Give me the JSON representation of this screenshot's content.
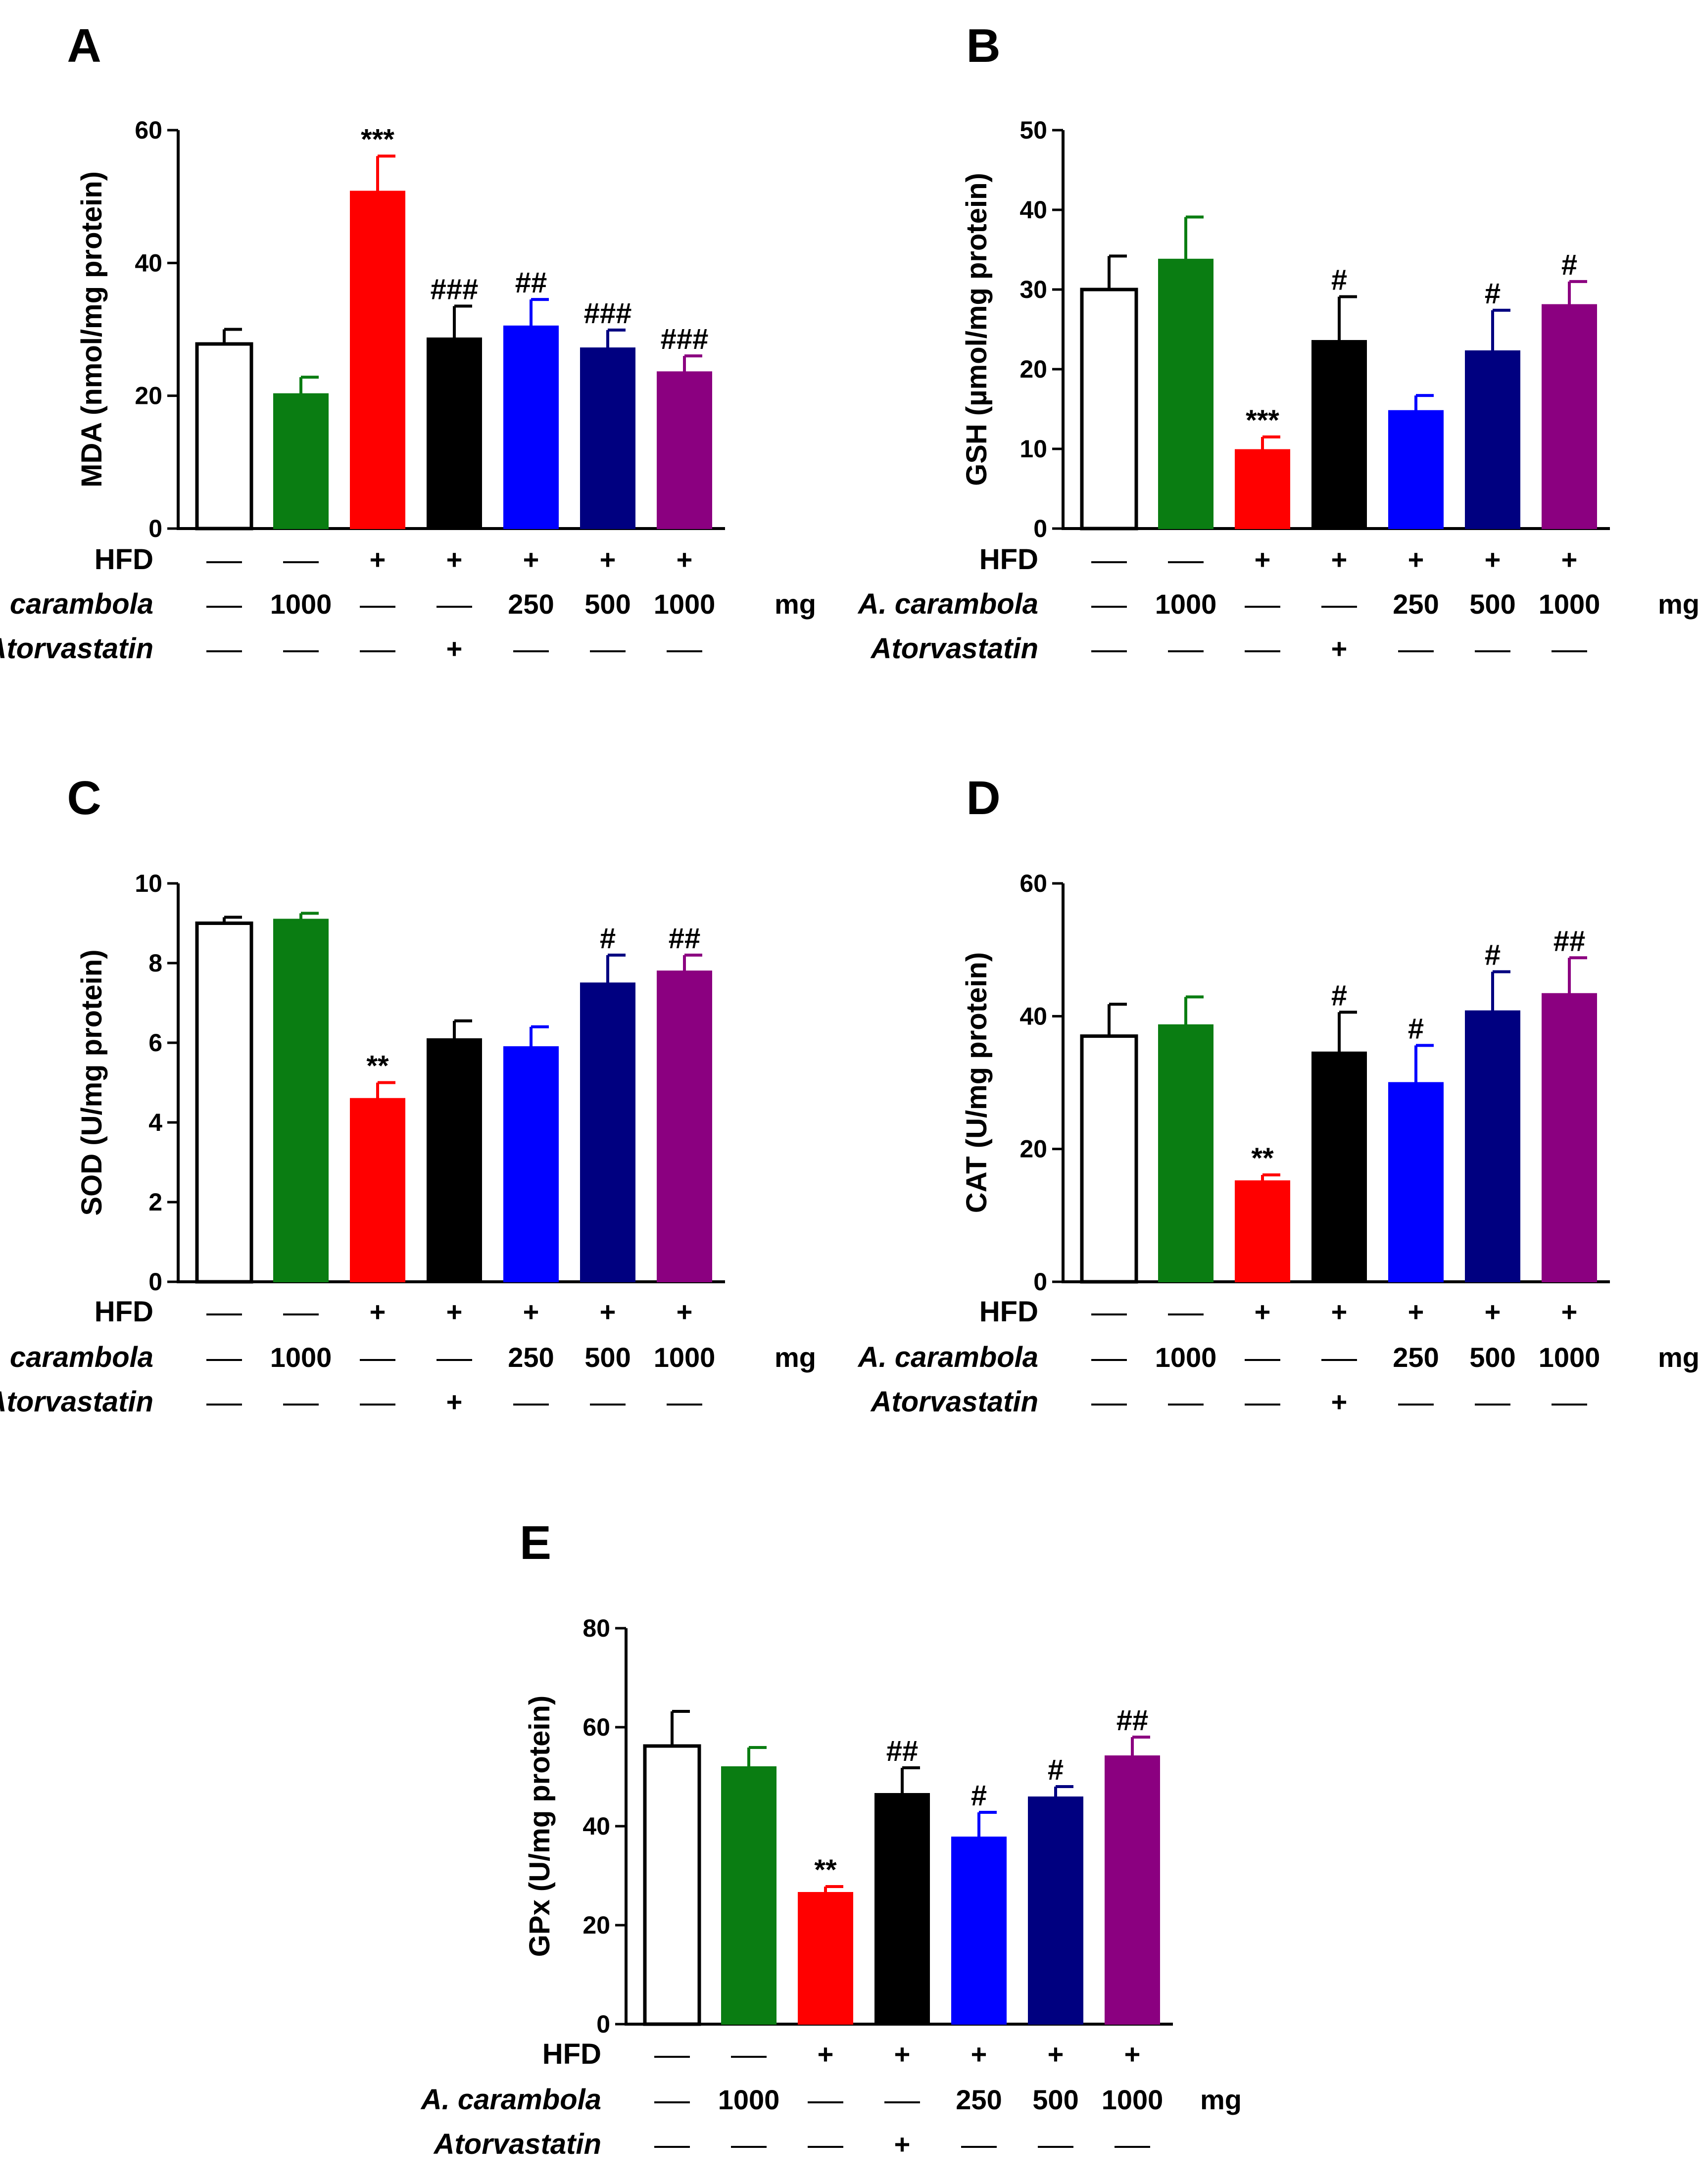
{
  "figure": {
    "row_labels": {
      "hfd": "HFD",
      "carambola": "A. carambola",
      "atorvastatin": "Atorvastatin"
    },
    "unit": "mg",
    "groups": [
      {
        "hfd": "—",
        "carambola": "—",
        "atorvastatin": "—"
      },
      {
        "hfd": "—",
        "carambola": "1000",
        "atorvastatin": "—"
      },
      {
        "hfd": "+",
        "carambola": "—",
        "atorvastatin": "—"
      },
      {
        "hfd": "+",
        "carambola": "—",
        "atorvastatin": "+"
      },
      {
        "hfd": "+",
        "carambola": "250",
        "atorvastatin": "—"
      },
      {
        "hfd": "+",
        "carambola": "500",
        "atorvastatin": "—"
      },
      {
        "hfd": "+",
        "carambola": "1000",
        "atorvastatin": "—"
      }
    ],
    "bar_colors": [
      "#ffffff",
      "#0a7d12",
      "#ff0000",
      "#000000",
      "#0000ff",
      "#000080",
      "#8b0080"
    ],
    "error_colors": [
      "#000000",
      "#0a7d12",
      "#ff0000",
      "#000000",
      "#0000ff",
      "#000080",
      "#8b0080"
    ]
  },
  "chart_data": [
    {
      "panel": "A",
      "type": "bar",
      "ylabel": "MDA (nmol/mg protein)",
      "ylim": [
        0,
        60
      ],
      "yticks": [
        0,
        20,
        40,
        60
      ],
      "ytick_labels": [
        "0",
        "20",
        "40",
        "60"
      ],
      "values": [
        27.8,
        20.3,
        50.8,
        28.7,
        30.5,
        27.2,
        23.6
      ],
      "errors": [
        2.2,
        2.5,
        5.3,
        4.8,
        4.0,
        2.7,
        2.4
      ],
      "annotations": [
        "",
        "",
        "***",
        "###",
        "##",
        "###",
        "###"
      ]
    },
    {
      "panel": "B",
      "type": "bar",
      "ylabel": "GSH (µmol/mg protein)",
      "ylim": [
        0,
        50
      ],
      "yticks": [
        0,
        10,
        20,
        30,
        40,
        50
      ],
      "ytick_labels": [
        "0",
        "10",
        "20",
        "30",
        "40",
        "50"
      ],
      "values": [
        30.0,
        33.8,
        9.9,
        23.6,
        14.8,
        22.3,
        28.1
      ],
      "errors": [
        4.2,
        5.3,
        1.6,
        5.5,
        1.9,
        5.1,
        2.9
      ],
      "annotations": [
        "",
        "",
        "***",
        "#",
        "",
        "#",
        "#"
      ]
    },
    {
      "panel": "C",
      "type": "bar",
      "ylabel": "SOD (U/mg protein)",
      "ylim": [
        0,
        10
      ],
      "yticks": [
        0,
        2,
        4,
        6,
        8,
        10
      ],
      "ytick_labels": [
        "0",
        "2",
        "4",
        "6",
        "8",
        "10"
      ],
      "values": [
        9.0,
        9.1,
        4.6,
        6.1,
        5.9,
        7.5,
        7.8
      ],
      "errors": [
        0.15,
        0.15,
        0.4,
        0.45,
        0.5,
        0.7,
        0.4
      ],
      "annotations": [
        "",
        "",
        "**",
        "",
        "",
        "#",
        "##"
      ]
    },
    {
      "panel": "D",
      "type": "bar",
      "ylabel": "CAT (U/mg protein)",
      "ylim": [
        0,
        60
      ],
      "yticks": [
        0,
        20,
        40,
        60
      ],
      "ytick_labels": [
        "0",
        "20",
        "40",
        "60"
      ],
      "values": [
        37.0,
        38.7,
        15.2,
        34.6,
        30.0,
        40.8,
        43.4
      ],
      "errors": [
        4.8,
        4.2,
        0.9,
        6.0,
        5.6,
        5.9,
        5.4
      ],
      "annotations": [
        "",
        "",
        "**",
        "#",
        "#",
        "#",
        "##"
      ]
    },
    {
      "panel": "E",
      "type": "bar",
      "ylabel": "GPx (U/mg protein)",
      "ylim": [
        0,
        80
      ],
      "yticks": [
        0,
        20,
        40,
        60,
        80
      ],
      "ytick_labels": [
        "0",
        "20",
        "40",
        "60",
        "80"
      ],
      "values": [
        56.2,
        52.0,
        26.6,
        46.6,
        37.8,
        45.9,
        54.2
      ],
      "errors": [
        7.0,
        3.9,
        1.2,
        5.2,
        5.0,
        2.1,
        3.8
      ],
      "annotations": [
        "",
        "",
        "**",
        "##",
        "#",
        "#",
        "##"
      ]
    }
  ]
}
